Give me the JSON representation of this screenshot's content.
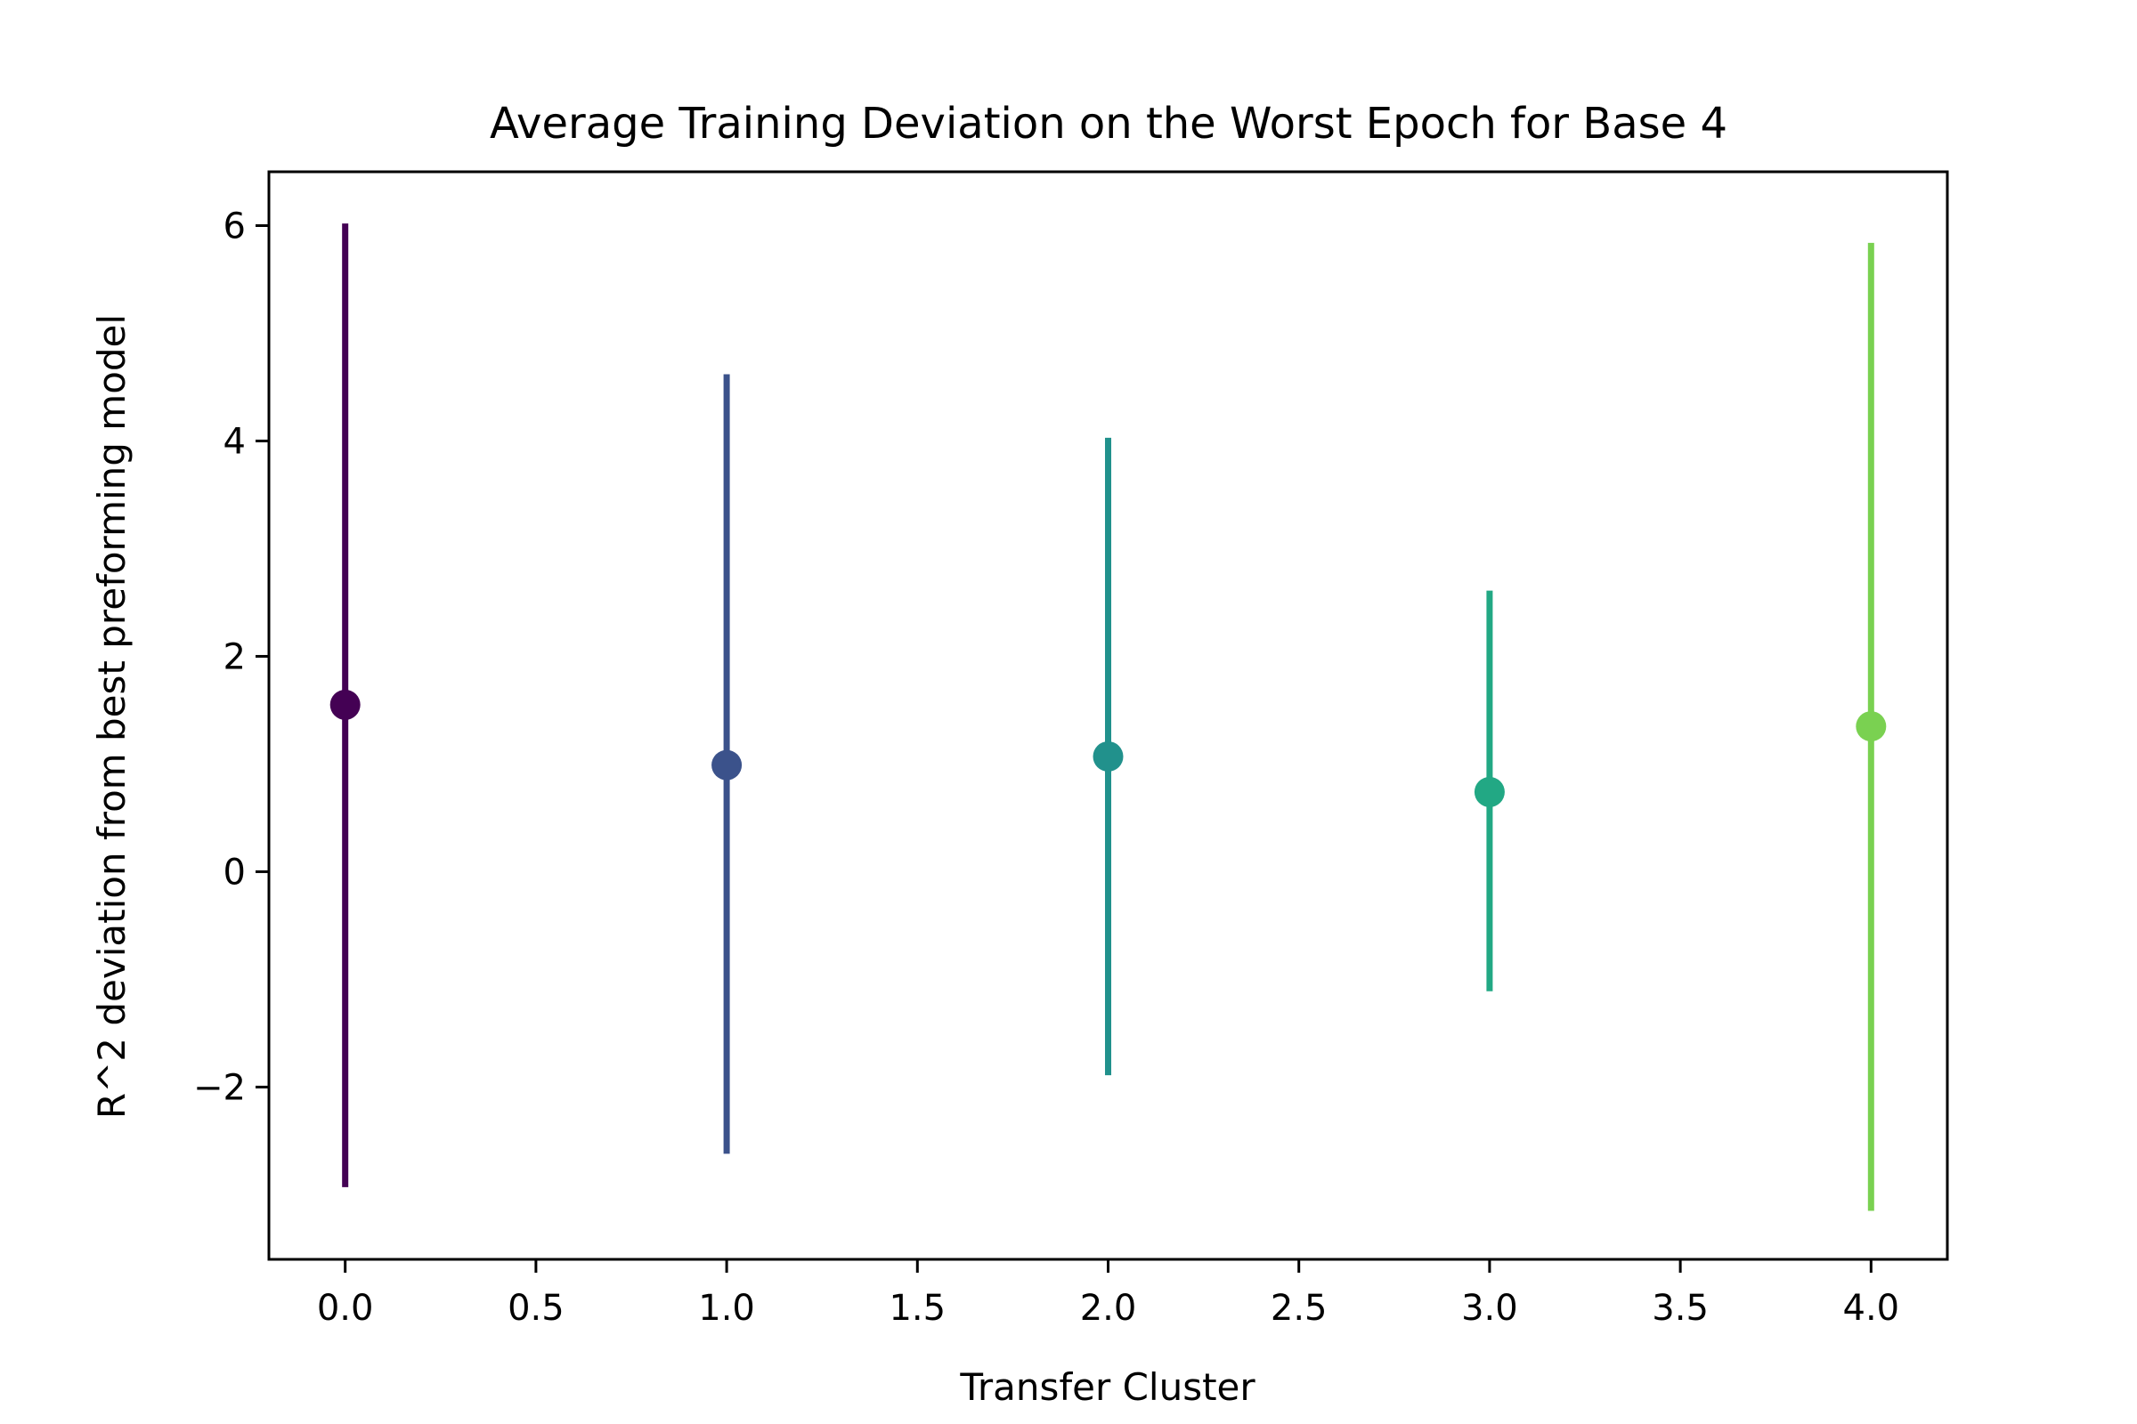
{
  "chart_data": {
    "type": "scatter",
    "title": "Average Training Deviation on the Worst Epoch for Base 4",
    "xlabel": "Transfer Cluster",
    "ylabel": "R^2 deviation from best preforming model",
    "xlim": [
      -0.2,
      4.2
    ],
    "ylim": [
      -3.6,
      6.5
    ],
    "xticks": [
      0.0,
      0.5,
      1.0,
      1.5,
      2.0,
      2.5,
      3.0,
      3.5,
      4.0
    ],
    "xtick_labels": [
      "0.0",
      "0.5",
      "1.0",
      "1.5",
      "2.0",
      "2.5",
      "3.0",
      "3.5",
      "4.0"
    ],
    "yticks": [
      -2,
      0,
      2,
      4,
      6
    ],
    "ytick_labels": [
      "−2",
      "0",
      "2",
      "4",
      "6"
    ],
    "grid": false,
    "legend": "none",
    "points": [
      {
        "x": 0,
        "y": 1.55,
        "err_low": -2.93,
        "err_high": 6.02,
        "color": "#440154"
      },
      {
        "x": 1,
        "y": 0.99,
        "err_low": -2.62,
        "err_high": 4.62,
        "color": "#3b528b"
      },
      {
        "x": 2,
        "y": 1.07,
        "err_low": -1.89,
        "err_high": 4.03,
        "color": "#21918c"
      },
      {
        "x": 3,
        "y": 0.74,
        "err_low": -1.11,
        "err_high": 2.61,
        "color": "#22a884"
      },
      {
        "x": 4,
        "y": 1.35,
        "err_low": -3.15,
        "err_high": 5.84,
        "color": "#7ad151"
      }
    ]
  }
}
